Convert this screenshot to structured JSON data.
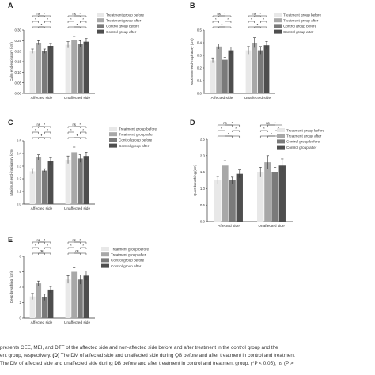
{
  "panel_letters": [
    "A",
    "B",
    "C",
    "D",
    "E"
  ],
  "caption": {
    "line1": "presents CEE, MEI, and DTF of the affected side and non-affected side before and after treatment in the control group and the",
    "line2_pre": "ent group, respectively. ",
    "line2_bold": "(D)",
    "line2_post": " The DM of affected side and unaffected side during QB before and after treatment in control and treatment",
    "line3": "The DM of affected side and unaffected side during DB before and after treatment in control and treatment group. (*P < 0.05), ns (P >"
  },
  "colors": {
    "Treatment group before": "#e8e8e8",
    "Treatment group after": "#a8a8a8",
    "Control group before": "#7a7a7a",
    "Control group after": "#4e4e4e"
  },
  "chart_data": [
    {
      "id": "A",
      "type": "bar",
      "categories": [
        "Affected side",
        "Unaffected side"
      ],
      "series": [
        {
          "name": "Treatment group before",
          "values": [
            0.2,
            0.23
          ],
          "err": [
            0.01,
            0.015
          ]
        },
        {
          "name": "Treatment group after",
          "values": [
            0.24,
            0.255
          ],
          "err": [
            0.01,
            0.015
          ]
        },
        {
          "name": "Control group before",
          "values": [
            0.2,
            0.235
          ],
          "err": [
            0.01,
            0.015
          ]
        },
        {
          "name": "Control group after",
          "values": [
            0.225,
            0.245
          ],
          "err": [
            0.012,
            0.015
          ]
        }
      ],
      "ylabel": "Calm end-expiratory (cm)",
      "ylim": [
        0,
        0.3
      ],
      "yticks": [
        "0.00",
        "0.05",
        "0.10",
        "0.15",
        "0.20",
        "0.25",
        "0.30"
      ],
      "legend": "right",
      "sig": [
        [
          "ns",
          "*"
        ],
        [
          "*",
          "*"
        ],
        [
          "*",
          "*"
        ]
      ]
    },
    {
      "id": "B",
      "type": "bar",
      "categories": [
        "Affected side",
        "Unaffected side"
      ],
      "series": [
        {
          "name": "Treatment group before",
          "values": [
            0.26,
            0.34
          ],
          "err": [
            0.02,
            0.03
          ]
        },
        {
          "name": "Treatment group after",
          "values": [
            0.37,
            0.4
          ],
          "err": [
            0.02,
            0.04
          ]
        },
        {
          "name": "Control group before",
          "values": [
            0.265,
            0.34
          ],
          "err": [
            0.02,
            0.03
          ]
        },
        {
          "name": "Control group after",
          "values": [
            0.34,
            0.38
          ],
          "err": [
            0.025,
            0.03
          ]
        }
      ],
      "ylabel": "Maximum end-inspiratory (cm)",
      "ylim": [
        0,
        0.5
      ],
      "yticks": [
        "0.0",
        "0.1",
        "0.2",
        "0.3",
        "0.4",
        "0.5"
      ],
      "legend": "right",
      "sig": [
        [
          "ns",
          "*"
        ],
        [
          "*",
          "*"
        ],
        [
          "*",
          "*"
        ]
      ]
    },
    {
      "id": "C",
      "type": "bar",
      "categories": [
        "Affected side",
        "Unaffected side"
      ],
      "series": [
        {
          "name": "Treatment group before",
          "values": [
            0.26,
            0.35
          ],
          "err": [
            0.02,
            0.03
          ]
        },
        {
          "name": "Treatment group after",
          "values": [
            0.37,
            0.41
          ],
          "err": [
            0.02,
            0.04
          ]
        },
        {
          "name": "Control group before",
          "values": [
            0.265,
            0.36
          ],
          "err": [
            0.015,
            0.03
          ]
        },
        {
          "name": "Control group after",
          "values": [
            0.34,
            0.38
          ],
          "err": [
            0.025,
            0.03
          ]
        }
      ],
      "ylabel": "Maximum end-inspiratory (cm)",
      "ylim": [
        0,
        0.5
      ],
      "yticks": [
        "0.0",
        "0.1",
        "0.2",
        "0.3",
        "0.4",
        "0.5"
      ],
      "legend": "right",
      "sig": [
        [
          "ns",
          "*"
        ],
        [
          "*",
          "*"
        ],
        [
          "*",
          "*"
        ]
      ]
    },
    {
      "id": "D",
      "type": "bar",
      "categories": [
        "Affected side",
        "Unaffected side"
      ],
      "series": [
        {
          "name": "Treatment group before",
          "values": [
            1.25,
            1.5
          ],
          "err": [
            0.12,
            0.15
          ]
        },
        {
          "name": "Treatment group after",
          "values": [
            1.7,
            1.8
          ],
          "err": [
            0.15,
            0.2
          ]
        },
        {
          "name": "Control group before",
          "values": [
            1.25,
            1.5
          ],
          "err": [
            0.1,
            0.15
          ]
        },
        {
          "name": "Control group after",
          "values": [
            1.45,
            1.7
          ],
          "err": [
            0.12,
            0.2
          ]
        }
      ],
      "ylabel": "Quiet breathing (cm)",
      "ylim": [
        0,
        2.5
      ],
      "yticks": [
        "0.0",
        "0.5",
        "1.0",
        "1.5",
        "2.0",
        "2.5"
      ],
      "legend": "right",
      "sig": [
        [
          "ns",
          "*"
        ],
        [
          "*",
          "*"
        ],
        [
          "*",
          "*"
        ]
      ]
    },
    {
      "id": "E",
      "type": "bar",
      "categories": [
        "Affected side",
        "Unaffected side"
      ],
      "series": [
        {
          "name": "Treatment group before",
          "values": [
            2.8,
            5.0
          ],
          "err": [
            0.4,
            0.5
          ]
        },
        {
          "name": "Treatment group after",
          "values": [
            4.5,
            6.0
          ],
          "err": [
            0.3,
            0.5
          ]
        },
        {
          "name": "Control group before",
          "values": [
            2.7,
            5.0
          ],
          "err": [
            0.4,
            0.6
          ]
        },
        {
          "name": "Control group after",
          "values": [
            3.7,
            5.5
          ],
          "err": [
            0.4,
            0.6
          ]
        }
      ],
      "ylabel": "Deep breathing (cm)",
      "ylim": [
        0,
        8
      ],
      "yticks": [
        "0",
        "2",
        "4",
        "6",
        "8"
      ],
      "legend": "right",
      "sig": [
        [
          "ns",
          "*"
        ],
        [
          "*",
          "*"
        ],
        [
          "ns",
          "*"
        ]
      ]
    }
  ]
}
